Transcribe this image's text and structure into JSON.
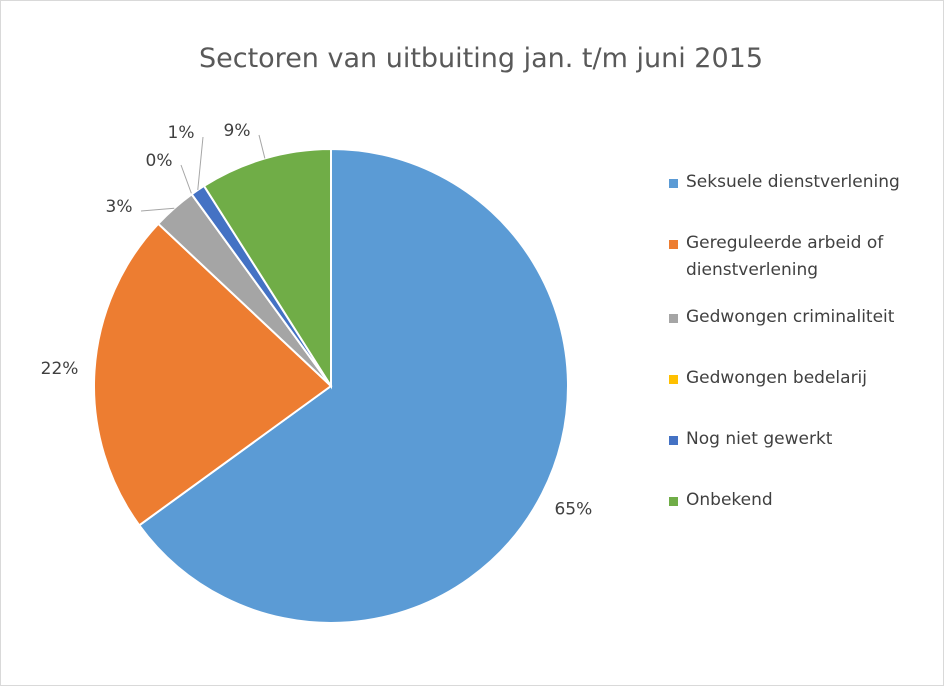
{
  "chart_data": {
    "type": "pie",
    "title": "Sectoren van uitbuiting jan. t/m juni 2015",
    "categories": [
      "Seksuele dienstverlening",
      "Gereguleerde arbeid of dienstverlening",
      "Gedwongen criminaliteit",
      "Gedwongen bedelarij",
      "Nog niet gewerkt",
      "Onbekend"
    ],
    "values": [
      65,
      22,
      3,
      0,
      1,
      9
    ],
    "value_labels": [
      "65%",
      "22%",
      "3%",
      "0%",
      "1%",
      "9%"
    ],
    "colors": [
      "#5b9bd5",
      "#ed7d31",
      "#a5a5a5",
      "#ffc000",
      "#4472c4",
      "#70ad47"
    ],
    "legend": "right"
  }
}
